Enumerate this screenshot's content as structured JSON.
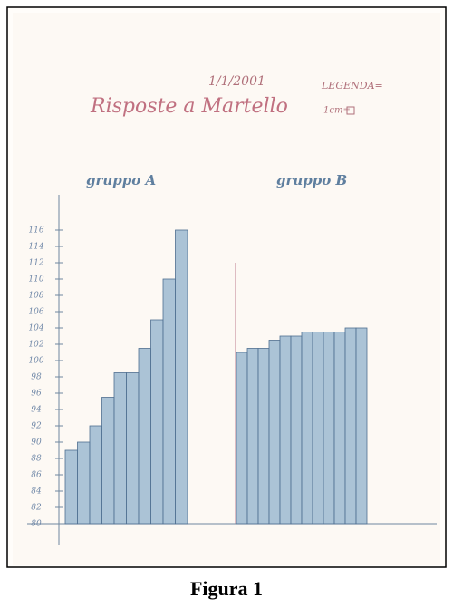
{
  "chart_data": {
    "type": "bar",
    "date": "1/1/2001",
    "title": "Risposte a Martello",
    "legend_title": "LEGENDA=",
    "legend_unit": "1cm=",
    "caption": "Figura 1",
    "groups": [
      {
        "name": "gruppo A",
        "color": "#8fb0cc",
        "values": [
          89,
          90,
          92,
          95.5,
          98.5,
          98.5,
          101.5,
          105,
          110,
          116
        ]
      },
      {
        "name": "gruppo B",
        "color": "#8fb0cc",
        "values": [
          101,
          101.5,
          101.5,
          102.5,
          103,
          103,
          103.5,
          103.5,
          103.5,
          103.5,
          104,
          104
        ]
      }
    ],
    "ylim": [
      78,
      118
    ],
    "yticks": [
      80,
      82,
      84,
      86,
      88,
      90,
      92,
      94,
      96,
      98,
      100,
      102,
      104,
      106,
      108,
      110,
      112,
      114,
      116
    ]
  }
}
